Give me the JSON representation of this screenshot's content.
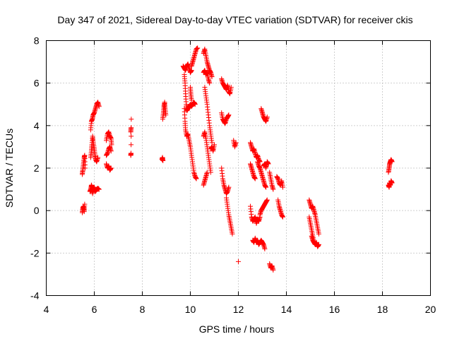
{
  "chart_data": {
    "type": "scatter",
    "title": "Day 347 of 2021, Sidereal Day-to-day VTEC variation (SDTVAR) for receiver ckis",
    "xlabel": "GPS time / hours",
    "ylabel": "SDTVAR / TECUs",
    "xlim": [
      4,
      20
    ],
    "ylim": [
      -4,
      8
    ],
    "xticks": [
      4,
      6,
      8,
      10,
      12,
      14,
      16,
      18,
      20
    ],
    "yticks": [
      -4,
      -2,
      0,
      2,
      4,
      6,
      8
    ],
    "xtick_labels": [
      "4",
      "6",
      "8",
      "10",
      "12",
      "14",
      "16",
      "18",
      "20"
    ],
    "ytick_labels": [
      "-4",
      "-2",
      "0",
      "2",
      "4",
      "6",
      "8"
    ],
    "grid": true,
    "marker": "plus",
    "color": "#ff0000",
    "series": [
      {
        "name": "SDTVAR",
        "tracks": [
          {
            "x": [
              5.5,
              5.52,
              5.55,
              5.58,
              5.6
            ],
            "y": [
              -0.1,
              0.1,
              0.2,
              -0.05,
              0.3
            ]
          },
          {
            "x": [
              5.5,
              5.52,
              5.55,
              5.58,
              5.6,
              5.62
            ],
            "y": [
              1.7,
              1.9,
              2.2,
              2.5,
              2.6,
              2.0
            ]
          },
          {
            "x": [
              5.82,
              5.85,
              5.88,
              5.9,
              5.93,
              5.95,
              6.0,
              6.05,
              6.1,
              6.15,
              6.2
            ],
            "y": [
              0.9,
              1.0,
              1.2,
              1.1,
              0.8,
              1.0,
              1.1,
              0.9,
              1.0,
              1.05,
              1.0
            ]
          },
          {
            "x": [
              5.85,
              5.88,
              5.9,
              5.93,
              5.96,
              6.0,
              6.03,
              6.06,
              6.1,
              6.15
            ],
            "y": [
              2.5,
              2.8,
              3.1,
              3.5,
              3.2,
              2.9,
              2.6,
              2.4,
              2.3,
              2.5
            ]
          },
          {
            "x": [
              5.85,
              5.88,
              5.92,
              5.95,
              6.0,
              6.05,
              6.1,
              6.15,
              6.2
            ],
            "y": [
              3.8,
              4.2,
              4.3,
              4.5,
              4.6,
              4.8,
              5.0,
              5.1,
              4.9
            ]
          },
          {
            "x": [
              6.5,
              6.55,
              6.6,
              6.65,
              6.7,
              6.72
            ],
            "y": [
              3.3,
              3.6,
              3.7,
              3.5,
              3.4,
              3.1
            ]
          },
          {
            "x": [
              6.5,
              6.55,
              6.6,
              6.65,
              6.7
            ],
            "y": [
              2.6,
              2.7,
              2.9,
              3.0,
              2.8
            ]
          },
          {
            "x": [
              6.5,
              6.55,
              6.6,
              6.65,
              6.7
            ],
            "y": [
              2.2,
              2.0,
              2.1,
              1.9,
              2.0
            ]
          },
          {
            "x": [
              7.52,
              7.53,
              7.54
            ],
            "y": [
              2.6,
              2.7,
              4.3
            ]
          },
          {
            "x": [
              7.52,
              7.53
            ],
            "y": [
              3.7,
              3.9
            ]
          },
          {
            "x": [
              8.82,
              8.84,
              8.86
            ],
            "y": [
              2.4,
              2.5,
              2.35
            ]
          },
          {
            "x": [
              8.85,
              8.88,
              8.9,
              8.93,
              8.95,
              8.98
            ],
            "y": [
              4.3,
              4.6,
              4.9,
              5.1,
              4.8,
              4.5
            ]
          },
          {
            "x": [
              9.7,
              9.75,
              9.8,
              9.85,
              9.9,
              9.95,
              10.0,
              10.05
            ],
            "y": [
              6.8,
              6.7,
              6.6,
              6.8,
              6.9,
              6.7,
              6.5,
              6.6
            ]
          },
          {
            "x": [
              10.05,
              10.1,
              10.15,
              10.2,
              10.25,
              10.3
            ],
            "y": [
              6.8,
              7.0,
              7.2,
              7.4,
              7.6,
              7.65
            ]
          },
          {
            "x": [
              9.75,
              9.78,
              9.8,
              9.83,
              9.86,
              9.9,
              9.95,
              10.0,
              10.05,
              10.1,
              10.15,
              10.2
            ],
            "y": [
              6.4,
              6.0,
              5.5,
              5.0,
              4.7,
              4.8,
              4.9,
              5.0,
              4.9,
              5.0,
              5.1,
              5.0
            ]
          },
          {
            "x": [
              9.75,
              9.78,
              9.8,
              9.85,
              9.9,
              9.95,
              10.0,
              10.05,
              10.1,
              10.15,
              10.2,
              10.25
            ],
            "y": [
              4.8,
              4.2,
              3.8,
              3.5,
              3.6,
              3.3,
              3.0,
              2.6,
              2.2,
              1.8,
              1.6,
              1.5
            ]
          },
          {
            "x": [
              10.0,
              10.02,
              10.05
            ],
            "y": [
              5.8,
              5.5,
              5.2
            ]
          },
          {
            "x": [
              10.55,
              10.6,
              10.65,
              10.7,
              10.75,
              10.8,
              10.85,
              10.9
            ],
            "y": [
              7.4,
              7.6,
              7.3,
              7.0,
              6.8,
              6.6,
              6.5,
              6.3
            ]
          },
          {
            "x": [
              10.55,
              10.6,
              10.65,
              10.7,
              10.75,
              10.8
            ],
            "y": [
              6.5,
              6.6,
              6.4,
              6.5,
              6.2,
              6.0
            ]
          },
          {
            "x": [
              10.6,
              10.65,
              10.7,
              10.75,
              10.8,
              10.85,
              10.9
            ],
            "y": [
              5.8,
              5.4,
              5.0,
              4.5,
              4.0,
              3.6,
              3.2
            ]
          },
          {
            "x": [
              10.55,
              10.6,
              10.65,
              10.7,
              10.75,
              10.8,
              10.85
            ],
            "y": [
              3.5,
              3.7,
              3.4,
              3.0,
              2.6,
              2.2,
              1.8
            ]
          },
          {
            "x": [
              10.55,
              10.6,
              10.65,
              10.7
            ],
            "y": [
              1.2,
              1.4,
              1.6,
              1.8
            ]
          },
          {
            "x": [
              10.85,
              10.9,
              10.95,
              11.0
            ],
            "y": [
              2.9,
              3.0,
              2.8,
              3.1
            ]
          },
          {
            "x": [
              11.3,
              11.35,
              11.4,
              11.45,
              11.5,
              11.55,
              11.6,
              11.65,
              11.7
            ],
            "y": [
              6.2,
              6.0,
              5.9,
              5.8,
              5.7,
              5.9,
              5.6,
              5.5,
              5.8
            ]
          },
          {
            "x": [
              11.3,
              11.35,
              11.4,
              11.45,
              11.5,
              11.55,
              11.6
            ],
            "y": [
              4.6,
              4.3,
              4.2,
              4.1,
              4.3,
              4.4,
              4.5
            ]
          },
          {
            "x": [
              11.3,
              11.35,
              11.4,
              11.45,
              11.5,
              11.55,
              11.6
            ],
            "y": [
              2.0,
              1.5,
              1.2,
              1.0,
              0.8,
              0.9,
              1.1
            ]
          },
          {
            "x": [
              11.5,
              11.55,
              11.6,
              11.65,
              11.7,
              11.75
            ],
            "y": [
              0.6,
              0.2,
              -0.2,
              -0.5,
              -0.8,
              -1.1
            ]
          },
          {
            "x": [
              11.8,
              11.85,
              11.9
            ],
            "y": [
              3.3,
              3.0,
              3.2
            ]
          },
          {
            "x": [
              12.0
            ],
            "y": [
              -2.4
            ]
          },
          {
            "x": [
              12.5,
              12.55,
              12.6,
              12.65,
              12.7,
              12.75,
              12.8,
              12.85,
              12.9
            ],
            "y": [
              3.2,
              3.0,
              2.8,
              2.9,
              2.7,
              2.5,
              2.6,
              2.4,
              2.3
            ]
          },
          {
            "x": [
              12.5,
              12.55,
              12.6,
              12.65,
              12.7
            ],
            "y": [
              2.2,
              2.0,
              1.8,
              1.6,
              1.5
            ]
          },
          {
            "x": [
              12.5,
              12.55,
              12.6,
              12.65,
              12.7,
              12.75,
              12.8,
              12.85,
              12.9
            ],
            "y": [
              0.2,
              -0.3,
              -0.5,
              -0.4,
              -0.3,
              -0.6,
              -0.4,
              -0.5,
              -0.3
            ]
          },
          {
            "x": [
              12.6,
              12.65,
              12.7,
              12.75,
              12.8,
              12.85,
              12.9,
              12.95,
              13.0,
              13.05,
              13.1
            ],
            "y": [
              -1.4,
              -1.5,
              -1.3,
              -1.5,
              -1.4,
              -1.6,
              -1.5,
              -1.4,
              -1.5,
              -1.6,
              -1.8
            ]
          },
          {
            "x": [
              12.8,
              12.85,
              12.9,
              12.95,
              13.0,
              13.05,
              13.1,
              13.15
            ],
            "y": [
              2.3,
              2.1,
              2.0,
              1.8,
              1.6,
              1.4,
              1.2,
              1.1
            ]
          },
          {
            "x": [
              12.95,
              13.0,
              13.05,
              13.1,
              13.15,
              13.2
            ],
            "y": [
              4.8,
              4.6,
              4.4,
              4.3,
              4.2,
              4.4
            ]
          },
          {
            "x": [
              12.9,
              12.95,
              13.0,
              13.05,
              13.1,
              13.15,
              13.2
            ],
            "y": [
              -0.2,
              0.0,
              0.1,
              0.2,
              0.3,
              0.4,
              0.5
            ]
          },
          {
            "x": [
              13.05,
              13.1,
              13.15,
              13.2,
              13.25
            ],
            "y": [
              2.1,
              2.2,
              2.0,
              2.3,
              2.2
            ]
          },
          {
            "x": [
              13.3,
              13.35,
              13.4,
              13.45
            ],
            "y": [
              -2.5,
              -2.7,
              -2.6,
              -2.8
            ]
          },
          {
            "x": [
              13.3,
              13.35,
              13.4,
              13.45
            ],
            "y": [
              1.8,
              1.5,
              1.2,
              1.0
            ]
          },
          {
            "x": [
              13.6,
              13.65,
              13.7,
              13.75,
              13.8,
              13.85
            ],
            "y": [
              1.6,
              1.5,
              1.3,
              1.2,
              1.4,
              1.1
            ]
          },
          {
            "x": [
              13.65,
              13.7,
              13.75,
              13.8,
              13.85
            ],
            "y": [
              0.5,
              0.2,
              0.0,
              -0.2,
              -0.3
            ]
          },
          {
            "x": [
              14.95,
              15.0,
              15.05,
              15.1,
              15.15,
              15.2,
              15.25,
              15.3,
              15.35
            ],
            "y": [
              0.5,
              0.3,
              0.1,
              0.2,
              0.0,
              -0.2,
              -0.5,
              -0.8,
              -1.1
            ]
          },
          {
            "x": [
              14.95,
              15.0,
              15.05,
              15.1,
              15.15
            ],
            "y": [
              -0.3,
              -0.6,
              -0.9,
              -1.2,
              -1.5
            ]
          },
          {
            "x": [
              15.05,
              15.1,
              15.15,
              15.2,
              15.25,
              15.3,
              15.35
            ],
            "y": [
              -1.2,
              -1.4,
              -1.5,
              -1.6,
              -1.5,
              -1.7,
              -1.6
            ]
          },
          {
            "x": [
              18.25,
              18.28,
              18.3,
              18.33,
              18.36,
              18.4
            ],
            "y": [
              1.8,
              2.0,
              2.2,
              2.3,
              2.4,
              2.3
            ]
          },
          {
            "x": [
              18.25,
              18.28,
              18.3,
              18.33,
              18.36,
              18.4
            ],
            "y": [
              1.2,
              1.1,
              1.3,
              1.2,
              1.4,
              1.3
            ]
          }
        ]
      }
    ]
  }
}
